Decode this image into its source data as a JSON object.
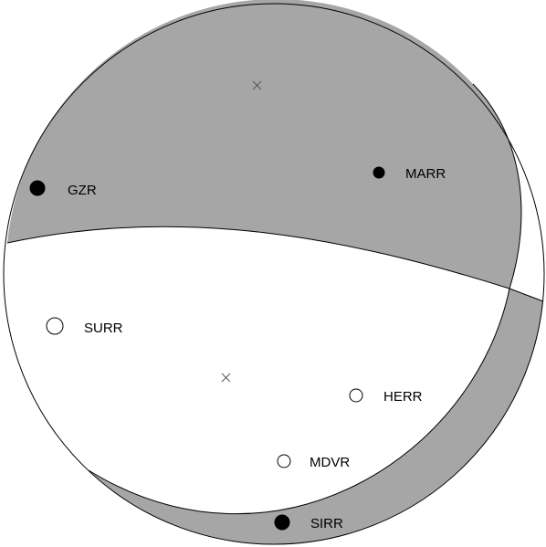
{
  "colors": {
    "compressional_fill": "#a6a6a6",
    "dilatational_fill": "#ffffff",
    "outline": "#000000",
    "first_motion_up": "#000000",
    "first_motion_down": "#ffffff"
  },
  "stations": [
    {
      "id": "GZR",
      "label": "GZR",
      "polarity": "up",
      "marker": "large-filled-circle"
    },
    {
      "id": "MARR",
      "label": "MARR",
      "polarity": "up",
      "marker": "filled-circle"
    },
    {
      "id": "SURR",
      "label": "SURR",
      "polarity": "down",
      "marker": "large-open-circle"
    },
    {
      "id": "HERR",
      "label": "HERR",
      "polarity": "down",
      "marker": "open-circle"
    },
    {
      "id": "MDVR",
      "label": "MDVR",
      "polarity": "down",
      "marker": "open-circle"
    },
    {
      "id": "SIRR",
      "label": "SIRR",
      "polarity": "up",
      "marker": "large-filled-circle"
    }
  ],
  "axes": [
    {
      "id": "p-axis",
      "marker": "x-mark"
    },
    {
      "id": "t-axis",
      "marker": "x-mark"
    }
  ]
}
